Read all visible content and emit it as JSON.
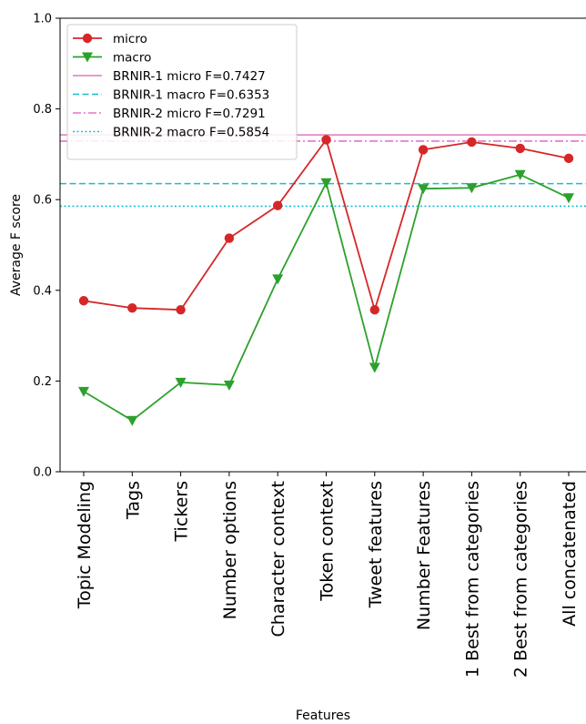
{
  "chart_data": {
    "type": "line",
    "xlabel": "Features",
    "ylabel": "Average F score",
    "ylim": [
      0.0,
      1.0
    ],
    "yticks": [
      0.0,
      0.2,
      0.4,
      0.6,
      0.8,
      1.0
    ],
    "ytick_labels": [
      "0.0",
      "0.2",
      "0.4",
      "0.6",
      "0.8",
      "1.0"
    ],
    "grid": false,
    "legend_position": "top-left",
    "categories": [
      "Topic Modeling",
      "Tags",
      "Tickers",
      "Number options",
      "Character context",
      "Token context",
      "Tweet features",
      "Number Features",
      "1 Best from categories",
      "2 Best from categories",
      "All concatenated"
    ],
    "series": [
      {
        "name": "micro",
        "color": "#d62728",
        "marker": "circle",
        "values": [
          0.377,
          0.361,
          0.357,
          0.515,
          0.587,
          0.732,
          0.357,
          0.71,
          0.727,
          0.713,
          0.691
        ]
      },
      {
        "name": "macro",
        "color": "#2ca02c",
        "marker": "triangle-down",
        "values": [
          0.177,
          0.113,
          0.197,
          0.191,
          0.425,
          0.637,
          0.23,
          0.624,
          0.626,
          0.655,
          0.604
        ]
      }
    ],
    "reference_lines": [
      {
        "name": "BRNIR-1 micro F=0.7427",
        "value": 0.7427,
        "color": "#e377c2",
        "style": "solid"
      },
      {
        "name": "BRNIR-1 macro F=0.6353",
        "value": 0.6353,
        "color": "#17becf",
        "style": "dashed"
      },
      {
        "name": "BRNIR-2 micro F=0.7291",
        "value": 0.7291,
        "color": "#e377c2",
        "style": "dashdot"
      },
      {
        "name": "BRNIR-2 macro F=0.5854",
        "value": 0.5854,
        "color": "#17becf",
        "style": "dotted"
      }
    ]
  }
}
